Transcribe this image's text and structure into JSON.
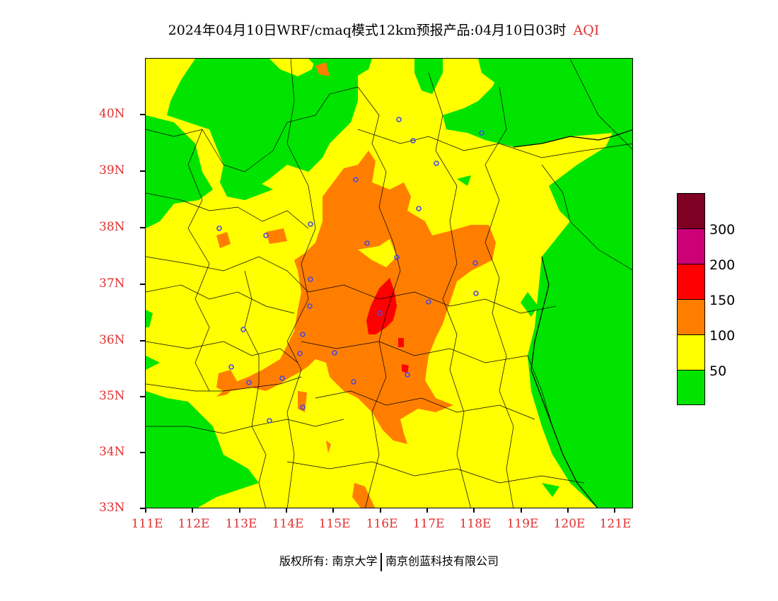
{
  "title": {
    "main": "2024年04月10日WRF/cmaq模式12km预报产品:04月10日03时",
    "variable": "AQI"
  },
  "map": {
    "lon_range": [
      111,
      121.4
    ],
    "lat_range": [
      33,
      41
    ],
    "lat_labels": [
      "40N",
      "39N",
      "38N",
      "37N",
      "36N",
      "35N",
      "34N",
      "33N"
    ],
    "lon_labels": [
      "111E",
      "112E",
      "113E",
      "114E",
      "115E",
      "116E",
      "117E",
      "118E",
      "119E",
      "120E",
      "121E"
    ],
    "colors": {
      "green": "#00e400",
      "yellow": "#ffff00",
      "orange": "#ff7e00",
      "red": "#ff0000",
      "purple": "#cc0077",
      "maroon": "#7e0023",
      "city_marker": "#4a4ae0"
    }
  },
  "legend": {
    "levels": [
      {
        "color": "#7e0023"
      },
      {
        "color": "#cc0077"
      },
      {
        "color": "#ff0000"
      },
      {
        "color": "#ff7e00"
      },
      {
        "color": "#ffff00"
      },
      {
        "color": "#00e400"
      }
    ],
    "labels": [
      "300",
      "200",
      "150",
      "100",
      "50"
    ]
  },
  "footer": {
    "copyright": "版权所有: 南京大学",
    "company": "南京创蓝科技有限公司"
  }
}
